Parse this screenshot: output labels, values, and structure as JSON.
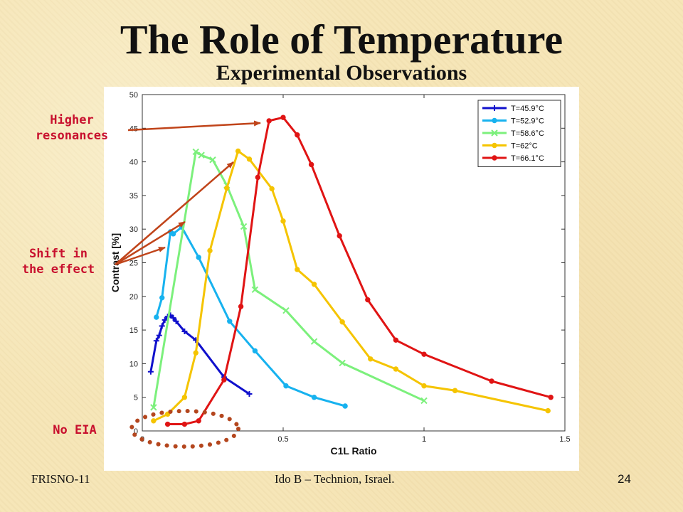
{
  "slide": {
    "title": "The Role of Temperature",
    "subtitle": "Experimental Observations",
    "footer_left": "FRISNO-11",
    "footer_center": "Ido B – Technion, Israel.",
    "page_number": "24"
  },
  "annotations": {
    "higher_resonances": [
      "Higher",
      "resonances"
    ],
    "shift": [
      "Shift in",
      "the effect"
    ],
    "no_eia": "No EIA",
    "arrow_color": "#c0441a",
    "ellipse_color": "#b4461e"
  },
  "chart_data": {
    "type": "line",
    "title": "",
    "xlabel": "C1L Ratio",
    "ylabel": "Contrast [%]",
    "xlim": [
      0,
      1.5
    ],
    "ylim": [
      0,
      50
    ],
    "xticks": [
      "0",
      "0.5",
      "1",
      "1.5"
    ],
    "yticks": [
      "0",
      "5",
      "10",
      "15",
      "20",
      "25",
      "30",
      "35",
      "40",
      "45",
      "50"
    ],
    "grid": false,
    "legend_position": "top-right",
    "series": [
      {
        "name": "T=45.9°C",
        "color": "#1010cc",
        "marker": "plus",
        "x": [
          0.03,
          0.05,
          0.06,
          0.07,
          0.08,
          0.09,
          0.1,
          0.11,
          0.12,
          0.15,
          0.19,
          0.29,
          0.38
        ],
        "y": [
          8.8,
          13.4,
          14.2,
          15.6,
          16.5,
          17.0,
          17.2,
          16.8,
          16.3,
          14.8,
          13.5,
          8.0,
          5.5
        ]
      },
      {
        "name": "T=52.9°C",
        "color": "#17b2ef",
        "marker": "circle",
        "x": [
          0.05,
          0.07,
          0.1,
          0.11,
          0.14,
          0.2,
          0.31,
          0.4,
          0.51,
          0.61,
          0.72
        ],
        "y": [
          16.9,
          19.8,
          29.6,
          29.3,
          30.3,
          25.8,
          16.3,
          11.9,
          6.7,
          5.0,
          3.7
        ]
      },
      {
        "name": "T=58.6°C",
        "color": "#7cf07c",
        "marker": "x",
        "x": [
          0.04,
          0.19,
          0.21,
          0.25,
          0.3,
          0.36,
          0.4,
          0.51,
          0.61,
          0.71,
          1.0
        ],
        "y": [
          3.5,
          41.5,
          41.0,
          40.3,
          36.5,
          30.4,
          21.0,
          17.9,
          13.3,
          10.1,
          4.5
        ]
      },
      {
        "name": "T=62°C",
        "color": "#f5c400",
        "marker": "circle",
        "x": [
          0.04,
          0.09,
          0.15,
          0.19,
          0.24,
          0.3,
          0.34,
          0.38,
          0.46,
          0.5,
          0.55,
          0.61,
          0.71,
          0.81,
          0.9,
          1.0,
          1.11,
          1.44
        ],
        "y": [
          1.5,
          2.5,
          5.0,
          11.6,
          26.8,
          36.1,
          41.6,
          40.4,
          36.0,
          31.2,
          24.0,
          21.8,
          16.2,
          10.7,
          9.2,
          6.7,
          6.0,
          3.0
        ]
      },
      {
        "name": "T=66.1°C",
        "color": "#e01414",
        "marker": "circle",
        "x": [
          0.09,
          0.15,
          0.2,
          0.29,
          0.35,
          0.41,
          0.45,
          0.5,
          0.55,
          0.6,
          0.7,
          0.8,
          0.9,
          1.0,
          1.24,
          1.45
        ],
        "y": [
          1.0,
          1.0,
          1.5,
          7.6,
          18.5,
          37.7,
          46.1,
          46.6,
          44.0,
          39.6,
          29.0,
          19.5,
          13.5,
          11.4,
          7.4,
          5.0
        ]
      }
    ]
  }
}
